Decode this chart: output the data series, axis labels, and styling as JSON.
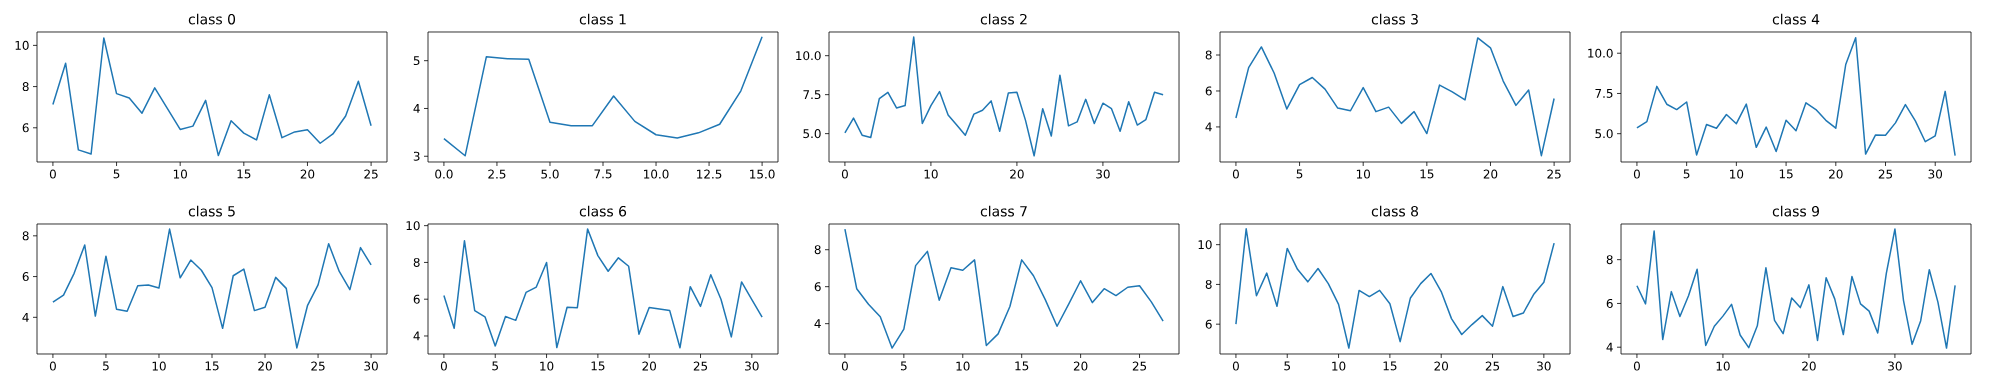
{
  "chart_data": [
    {
      "type": "line",
      "title": "class 0",
      "color": "#1f77b4",
      "x": [
        0,
        1,
        2,
        3,
        4,
        5,
        6,
        7,
        8,
        9,
        10,
        11,
        12,
        13,
        14,
        15,
        16,
        17,
        18,
        19,
        20,
        21,
        22,
        23,
        24,
        25
      ],
      "values": [
        7.13,
        9.13,
        4.93,
        4.73,
        10.36,
        7.66,
        7.45,
        6.71,
        7.94,
        6.93,
        5.92,
        6.08,
        7.33,
        4.65,
        6.34,
        5.74,
        5.41,
        7.6,
        5.52,
        5.8,
        5.9,
        5.25,
        5.7,
        6.57,
        8.26,
        6.1
      ],
      "xlim": [
        -1.25,
        26.25
      ],
      "ylim": [
        4.34,
        10.65
      ],
      "xticks": [
        0,
        5,
        10,
        15,
        20,
        25
      ],
      "yticks": [
        6,
        8,
        10
      ]
    },
    {
      "type": "line",
      "title": "class 1",
      "color": "#1f77b4",
      "x": [
        0,
        1,
        2,
        3,
        4,
        5,
        6,
        7,
        8,
        9,
        10,
        11,
        12,
        13,
        14,
        15
      ],
      "values": [
        3.37,
        3.01,
        5.08,
        5.04,
        5.03,
        3.71,
        3.64,
        3.64,
        4.26,
        3.73,
        3.45,
        3.38,
        3.49,
        3.67,
        4.37,
        5.5
      ],
      "xlim": [
        -0.75,
        15.75
      ],
      "ylim": [
        2.88,
        5.6
      ],
      "xticks": [
        {
          "value": 0,
          "label": "0.0"
        },
        {
          "value": 2.5,
          "label": "2.5"
        },
        {
          "value": 5,
          "label": "5.0"
        },
        {
          "value": 7.5,
          "label": "7.5"
        },
        {
          "value": 10,
          "label": "10.0"
        },
        {
          "value": 12.5,
          "label": "12.5"
        },
        {
          "value": 15,
          "label": "15.0"
        }
      ],
      "yticks": [
        3,
        4,
        5
      ]
    },
    {
      "type": "line",
      "title": "class 2",
      "color": "#1f77b4",
      "x": [
        0,
        1,
        2,
        3,
        4,
        5,
        6,
        7,
        8,
        9,
        10,
        11,
        12,
        13,
        14,
        15,
        16,
        17,
        18,
        19,
        20,
        21,
        22,
        23,
        24,
        25,
        26,
        27,
        28,
        29,
        30,
        31,
        32,
        33,
        34,
        35,
        36,
        37
      ],
      "values": [
        5.05,
        6.0,
        4.9,
        4.75,
        7.25,
        7.65,
        6.65,
        6.8,
        11.2,
        5.65,
        6.8,
        7.7,
        6.2,
        5.55,
        4.9,
        6.25,
        6.5,
        7.1,
        5.15,
        7.6,
        7.65,
        5.85,
        3.58,
        6.6,
        4.85,
        8.75,
        5.5,
        5.75,
        7.2,
        5.65,
        6.95,
        6.6,
        5.15,
        7.05,
        5.55,
        5.9,
        7.65,
        7.5
      ],
      "xlim": [
        -1.85,
        38.85
      ],
      "ylim": [
        3.18,
        11.52
      ],
      "xticks": [
        0,
        10,
        20,
        30
      ],
      "yticks": [
        {
          "value": 5,
          "label": "5.0"
        },
        {
          "value": 7.5,
          "label": "7.5"
        },
        {
          "value": 10,
          "label": "10.0"
        }
      ]
    },
    {
      "type": "line",
      "title": "class 3",
      "color": "#1f77b4",
      "x": [
        0,
        1,
        2,
        3,
        4,
        5,
        6,
        7,
        8,
        9,
        10,
        11,
        12,
        13,
        14,
        15,
        16,
        17,
        18,
        19,
        20,
        21,
        22,
        23,
        24,
        25
      ],
      "values": [
        4.5,
        7.3,
        8.45,
        7.0,
        5.0,
        6.35,
        6.75,
        6.1,
        5.05,
        4.9,
        6.19,
        4.85,
        5.1,
        4.2,
        4.85,
        3.63,
        6.33,
        5.95,
        5.5,
        8.95,
        8.4,
        6.55,
        5.2,
        6.05,
        2.4,
        5.58
      ],
      "xlim": [
        -1.25,
        26.25
      ],
      "ylim": [
        2.05,
        9.28
      ],
      "xticks": [
        0,
        5,
        10,
        15,
        20,
        25
      ],
      "yticks": [
        4,
        6,
        8
      ]
    },
    {
      "type": "line",
      "title": "class 4",
      "color": "#1f77b4",
      "x": [
        0,
        1,
        2,
        3,
        4,
        5,
        6,
        7,
        8,
        9,
        10,
        11,
        12,
        13,
        14,
        15,
        16,
        17,
        18,
        19,
        20,
        21,
        22,
        23,
        24,
        25,
        26,
        27,
        28,
        29,
        30,
        31,
        32
      ],
      "values": [
        5.36,
        5.75,
        7.94,
        6.83,
        6.5,
        6.97,
        3.68,
        5.57,
        5.34,
        6.19,
        5.62,
        6.84,
        4.15,
        5.41,
        3.89,
        5.83,
        5.18,
        6.92,
        6.5,
        5.83,
        5.34,
        9.3,
        10.96,
        3.73,
        4.92,
        4.9,
        5.67,
        6.81,
        5.8,
        4.5,
        4.87,
        7.63,
        3.63
      ],
      "xlim": [
        -1.6,
        33.6
      ],
      "ylim": [
        3.24,
        11.32
      ],
      "xticks": [
        0,
        5,
        10,
        15,
        20,
        25,
        30
      ],
      "yticks": [
        {
          "value": 5,
          "label": "5.0"
        },
        {
          "value": 7.5,
          "label": "7.5"
        },
        {
          "value": 10,
          "label": "10.0"
        }
      ]
    },
    {
      "type": "line",
      "title": "class 5",
      "color": "#1f77b4",
      "x": [
        0,
        1,
        2,
        3,
        4,
        5,
        6,
        7,
        8,
        9,
        10,
        11,
        12,
        13,
        14,
        15,
        16,
        17,
        18,
        19,
        20,
        21,
        22,
        23,
        24,
        25,
        26,
        27,
        28,
        29,
        30
      ],
      "values": [
        4.74,
        5.09,
        6.16,
        7.55,
        4.06,
        7.0,
        4.4,
        4.3,
        5.55,
        5.59,
        5.44,
        8.33,
        5.94,
        6.81,
        6.31,
        5.46,
        3.46,
        6.04,
        6.37,
        4.33,
        4.49,
        5.96,
        5.42,
        2.5,
        4.57,
        5.59,
        7.61,
        6.25,
        5.36,
        7.42,
        6.57
      ],
      "xlim": [
        -1.5,
        31.5
      ],
      "ylim": [
        2.2,
        8.58
      ],
      "xticks": [
        0,
        5,
        10,
        15,
        20,
        25,
        30
      ],
      "yticks": [
        4,
        6,
        8
      ]
    },
    {
      "type": "line",
      "title": "class 6",
      "color": "#1f77b4",
      "x": [
        0,
        1,
        2,
        3,
        4,
        5,
        6,
        7,
        8,
        9,
        10,
        11,
        12,
        13,
        14,
        15,
        16,
        17,
        18,
        19,
        20,
        21,
        22,
        23,
        24,
        25,
        26,
        27,
        28,
        29,
        30,
        31
      ],
      "values": [
        6.2,
        4.42,
        9.18,
        5.38,
        5.04,
        3.46,
        5.06,
        4.85,
        6.37,
        6.66,
        8.0,
        3.37,
        5.56,
        5.54,
        9.82,
        8.37,
        7.52,
        8.25,
        7.79,
        4.1,
        5.55,
        5.47,
        5.38,
        3.36,
        6.68,
        5.61,
        7.33,
        5.98,
        3.95,
        6.94,
        5.98,
        5.02
      ],
      "xlim": [
        -1.55,
        32.55
      ],
      "ylim": [
        3.02,
        10.09
      ],
      "xticks": [
        0,
        5,
        10,
        15,
        20,
        25,
        30
      ],
      "yticks": [
        4,
        6,
        8,
        10
      ]
    },
    {
      "type": "line",
      "title": "class 7",
      "color": "#1f77b4",
      "x": [
        0,
        1,
        2,
        3,
        4,
        5,
        6,
        7,
        8,
        9,
        10,
        11,
        12,
        13,
        14,
        15,
        16,
        17,
        18,
        19,
        20,
        21,
        22,
        23,
        24,
        25,
        26,
        27
      ],
      "values": [
        9.11,
        5.89,
        5.05,
        4.37,
        2.68,
        3.7,
        7.14,
        7.91,
        5.27,
        7.02,
        6.89,
        7.45,
        2.82,
        3.45,
        4.93,
        7.45,
        6.59,
        5.3,
        3.86,
        5.07,
        6.32,
        5.14,
        5.89,
        5.52,
        5.97,
        6.05,
        5.18,
        4.14
      ],
      "xlim": [
        -1.35,
        28.35
      ],
      "ylim": [
        2.36,
        9.39
      ],
      "xticks": [
        0,
        5,
        10,
        15,
        20,
        25
      ],
      "yticks": [
        4,
        6,
        8
      ]
    },
    {
      "type": "line",
      "title": "class 8",
      "color": "#1f77b4",
      "x": [
        0,
        1,
        2,
        3,
        4,
        5,
        6,
        7,
        8,
        9,
        10,
        11,
        12,
        13,
        14,
        15,
        16,
        17,
        18,
        19,
        20,
        21,
        22,
        23,
        24,
        25,
        26,
        27,
        28,
        29,
        30,
        31
      ],
      "values": [
        6.0,
        10.8,
        7.43,
        8.57,
        6.9,
        9.81,
        8.76,
        8.13,
        8.8,
        8.04,
        7.0,
        4.8,
        7.7,
        7.39,
        7.7,
        7.03,
        5.12,
        7.32,
        8.04,
        8.55,
        7.64,
        6.28,
        5.48,
        5.98,
        6.43,
        5.9,
        7.89,
        6.39,
        6.56,
        7.49,
        8.11,
        10.08
      ],
      "xlim": [
        -1.55,
        32.55
      ],
      "ylim": [
        4.5,
        11.04
      ],
      "xticks": [
        0,
        5,
        10,
        15,
        20,
        25,
        30
      ],
      "yticks": [
        6,
        8,
        10
      ]
    },
    {
      "type": "line",
      "title": "class 9",
      "color": "#1f77b4",
      "x": [
        0,
        1,
        2,
        3,
        4,
        5,
        6,
        7,
        8,
        9,
        10,
        11,
        12,
        13,
        14,
        15,
        16,
        17,
        18,
        19,
        20,
        21,
        22,
        23,
        24,
        25,
        26,
        27,
        28,
        29,
        30,
        31,
        32,
        33,
        34,
        35,
        36,
        37
      ],
      "values": [
        6.81,
        5.98,
        9.31,
        4.35,
        6.54,
        5.4,
        6.35,
        7.56,
        4.08,
        4.96,
        5.42,
        5.96,
        4.56,
        3.98,
        4.98,
        7.63,
        5.23,
        4.62,
        6.25,
        5.81,
        6.85,
        4.31,
        7.17,
        6.21,
        4.58,
        7.23,
        5.98,
        5.65,
        4.65,
        7.37,
        9.4,
        6.13,
        4.13,
        5.21,
        7.54,
        6.06,
        3.96,
        6.83
      ],
      "xlim": [
        -1.85,
        38.85
      ],
      "ylim": [
        3.69,
        9.63
      ],
      "xticks": [
        0,
        10,
        20,
        30
      ],
      "yticks": [
        4,
        6,
        8
      ]
    }
  ]
}
